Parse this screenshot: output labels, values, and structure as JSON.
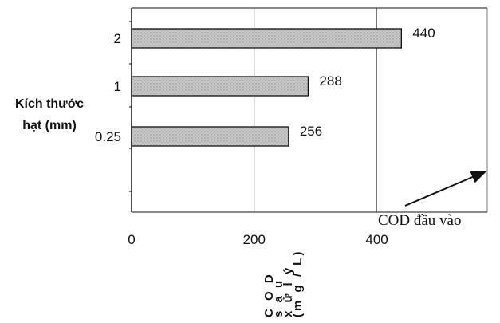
{
  "chart_data": {
    "type": "bar",
    "orientation": "horizontal",
    "categories": [
      "2",
      "1",
      "0.25"
    ],
    "values": [
      440,
      288,
      256
    ],
    "data_labels": [
      "440",
      "288",
      "256"
    ],
    "ylabel_lines": [
      "Kích thước",
      "hạt (mm)"
    ],
    "xlabel_lines": [
      "C O D",
      "s a u",
      "x ử  l ý",
      "(m g / L)"
    ],
    "xticks": [
      0,
      200,
      400
    ],
    "xtick_labels": [
      "0",
      "200",
      "400"
    ],
    "xlim": [
      0,
      580
    ],
    "grid": true,
    "bar_color": "#c8c8c8",
    "annotation": {
      "text": "COD đầu vào",
      "value": 580
    }
  }
}
